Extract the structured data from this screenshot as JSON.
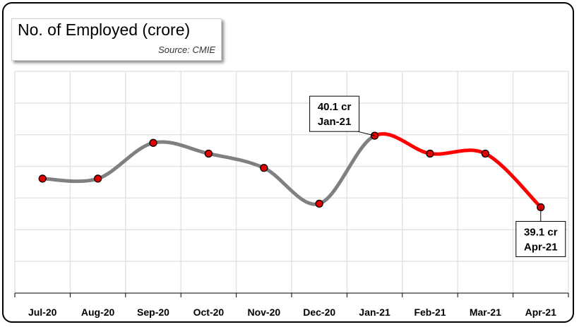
{
  "chart_data": {
    "type": "line",
    "title": "No. of Employed (crore)",
    "source": "Source: CMIE",
    "categories": [
      "Jul-20",
      "Aug-20",
      "Sep-20",
      "Oct-20",
      "Nov-20",
      "Dec-20",
      "Jan-21",
      "Feb-21",
      "Mar-21",
      "Apr-21"
    ],
    "values": [
      39.5,
      39.5,
      40.0,
      39.85,
      39.65,
      39.15,
      40.1,
      39.85,
      39.85,
      39.1
    ],
    "ylim": [
      37.9,
      41.0
    ],
    "grid": true,
    "colors": {
      "before": "#808080",
      "after": "#ff0000",
      "marker": "#e00000"
    },
    "highlight_from_index": 6,
    "annotations": [
      {
        "index": 6,
        "line1": "40.1 cr",
        "line2": "Jan-21"
      },
      {
        "index": 9,
        "line1": "39.1 cr",
        "line2": "Apr-21"
      }
    ]
  }
}
